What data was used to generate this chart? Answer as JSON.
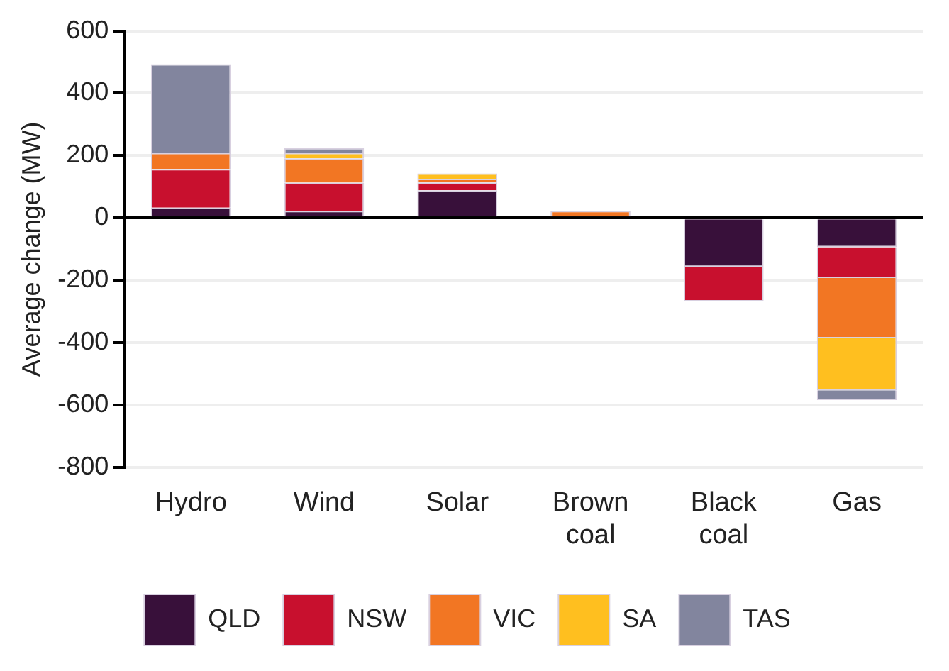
{
  "chart_data": {
    "type": "bar",
    "stacked": true,
    "ylabel": "Average change (MW)",
    "categories": [
      "Hydro",
      "Wind",
      "Solar",
      "Brown coal",
      "Black coal",
      "Gas"
    ],
    "series": [
      {
        "name": "QLD",
        "color": "#38103a",
        "values": [
          33,
          23,
          89,
          0,
          -157,
          -94
        ]
      },
      {
        "name": "NSW",
        "color": "#c8102e",
        "values": [
          124,
          90,
          25,
          0,
          -111,
          -99
        ]
      },
      {
        "name": "VIC",
        "color": "#f27623",
        "values": [
          52,
          78,
          12,
          23,
          0,
          -193
        ]
      },
      {
        "name": "SA",
        "color": "#ffbf1f",
        "values": [
          0,
          18,
          17,
          0,
          0,
          -167
        ]
      },
      {
        "name": "TAS",
        "color": "#82859e",
        "values": [
          284,
          15,
          0,
          0,
          0,
          -31
        ]
      }
    ],
    "ylim": [
      -800,
      600
    ],
    "yticks": [
      -800,
      -600,
      -400,
      -200,
      0,
      200,
      400,
      600
    ],
    "grid": "y",
    "legend": "bottom"
  }
}
